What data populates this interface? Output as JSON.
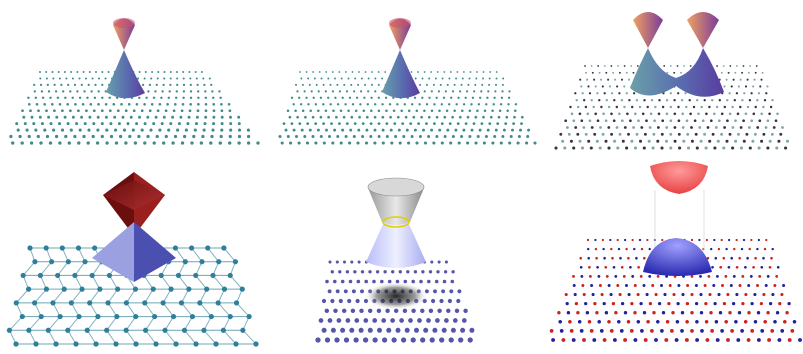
{
  "panels": [
    {
      "name": "graphene-dirac-cone",
      "lattice": "honeycomb-square",
      "band": "dirac-cone",
      "colors": {
        "upper": "#c8506e",
        "upper_alt": "#f0a060",
        "lower": "#5a5fb0",
        "lower_alt": "#6aa0a8",
        "atoms": "#3d8c8a"
      }
    },
    {
      "name": "graphene-dirac-cone-fine",
      "lattice": "honeycomb-square",
      "band": "dirac-cone",
      "colors": {
        "upper": "#c8506e",
        "upper_alt": "#f0a060",
        "lower": "#5a5fb0",
        "lower_alt": "#6aa0a8",
        "atoms": "#3d8c8a"
      }
    },
    {
      "name": "double-dirac-cone",
      "lattice": "honeycomb-dark",
      "band": "double-cone",
      "colors": {
        "upper": "#c8506e",
        "upper_alt": "#f0a060",
        "lower": "#5a5fb0",
        "lower_alt": "#6aa0a8",
        "atoms": "#333344"
      }
    },
    {
      "name": "anisotropic-pyramid",
      "lattice": "honeycomb-bonds",
      "band": "pyramid",
      "colors": {
        "upper": "#8b1a1a",
        "upper_alt": "#b03030",
        "lower": "#5a5fc0",
        "lower_alt": "#9aa0e0",
        "atoms": "#2f7f9a"
      }
    },
    {
      "name": "gapped-cone-ring",
      "lattice": "hexagonal-shadow",
      "band": "gapped-cone",
      "colors": {
        "upper": "#9a9a9a",
        "upper_alt": "#e0e0e0",
        "lower": "#9aa0f0",
        "lower_alt": "#dde0ff",
        "atoms": "#5555aa",
        "ring": "#e0d000"
      }
    },
    {
      "name": "gapped-parabolic-bands",
      "lattice": "red-blue-dots",
      "band": "parabolic-gap",
      "colors": {
        "upper": "#f05050",
        "upper_alt": "#ff9a9a",
        "lower": "#3030c0",
        "lower_alt": "#8080ff",
        "atoms_a": "#d02020",
        "atoms_b": "#2020a0"
      }
    }
  ]
}
